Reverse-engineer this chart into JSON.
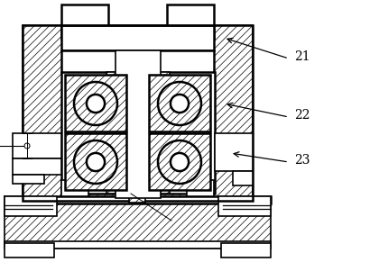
{
  "bg": "#ffffff",
  "lc": "#000000",
  "lw": 1.2,
  "lw2": 1.8,
  "label_21": "21",
  "label_22": "22",
  "label_23": "23"
}
